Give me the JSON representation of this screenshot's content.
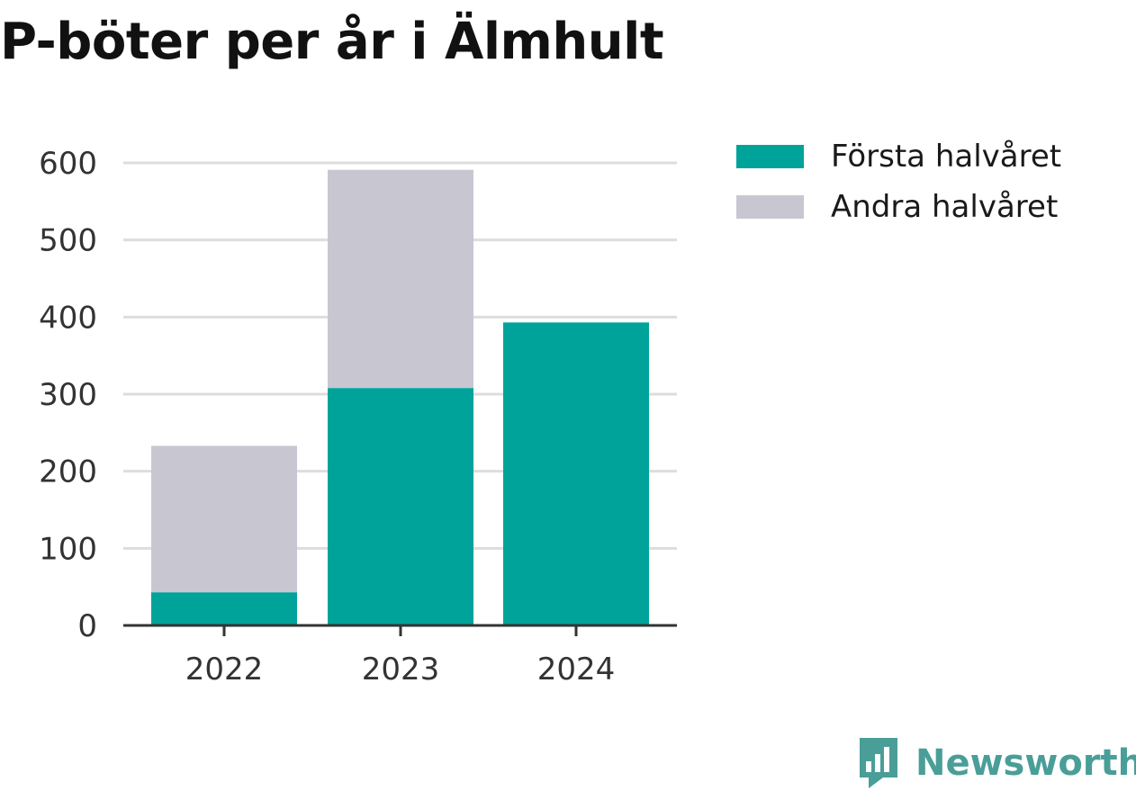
{
  "title": "P-böter per år i Älmhult",
  "brand": {
    "name": "Newsworthy",
    "icon": "bar-chart-speech-bubble-icon",
    "color": "#4a9e98"
  },
  "chart_data": {
    "type": "bar",
    "stacked": true,
    "categories": [
      "2022",
      "2023",
      "2024"
    ],
    "series": [
      {
        "name": "Första halvåret",
        "color": "#00a39a",
        "values": [
          43,
          308,
          393
        ]
      },
      {
        "name": "Andra halvåret",
        "color": "#c8c7d1",
        "values": [
          190,
          283,
          0
        ]
      }
    ],
    "yticks": [
      0,
      100,
      200,
      300,
      400,
      500,
      600
    ],
    "ylim": [
      0,
      600
    ],
    "grid": true,
    "legend": "right"
  }
}
